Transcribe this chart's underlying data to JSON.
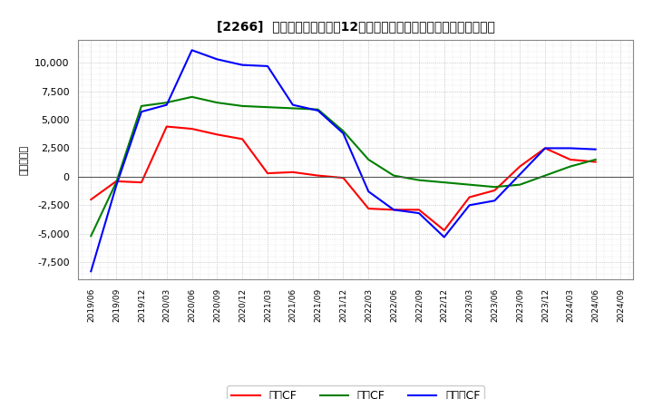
{
  "title": "[2266]  キャッシュフローの12か月移動合計の対前年同期増減額の推移",
  "ylabel": "（百万円）",
  "background_color": "#ffffff",
  "plot_background": "#ffffff",
  "grid_color": "#aaaaaa",
  "dates": [
    "2019/06",
    "2019/09",
    "2019/12",
    "2020/03",
    "2020/06",
    "2020/09",
    "2020/12",
    "2021/03",
    "2021/06",
    "2021/09",
    "2021/12",
    "2022/03",
    "2022/06",
    "2022/09",
    "2022/12",
    "2023/03",
    "2023/06",
    "2023/09",
    "2023/12",
    "2024/03",
    "2024/06",
    "2024/09"
  ],
  "operating_cf": [
    -2000,
    -400,
    -500,
    4400,
    4200,
    3700,
    3300,
    300,
    400,
    100,
    -100,
    -2800,
    -2900,
    -2900,
    -4700,
    -1800,
    -1200,
    900,
    2500,
    1500,
    1300,
    null
  ],
  "investing_cf": [
    -5200,
    -500,
    6200,
    6500,
    7000,
    6500,
    6200,
    6100,
    6000,
    5900,
    4000,
    1500,
    100,
    -300,
    -500,
    -700,
    -900,
    -700,
    100,
    900,
    1500,
    null
  ],
  "free_cf": [
    -8300,
    -800,
    5700,
    6300,
    11100,
    10300,
    9800,
    9700,
    6300,
    5800,
    3800,
    -1300,
    -2900,
    -3200,
    -5300,
    -2500,
    -2100,
    200,
    2500,
    2500,
    2400,
    null
  ],
  "operating_color": "#ff0000",
  "investing_color": "#008000",
  "free_color": "#0000ff",
  "ylim": [
    -9000,
    12000
  ],
  "yticks": [
    -7500,
    -5000,
    -2500,
    0,
    2500,
    5000,
    7500,
    10000
  ],
  "legend_labels": [
    "営業CF",
    "投資CF",
    "フリーCF"
  ]
}
